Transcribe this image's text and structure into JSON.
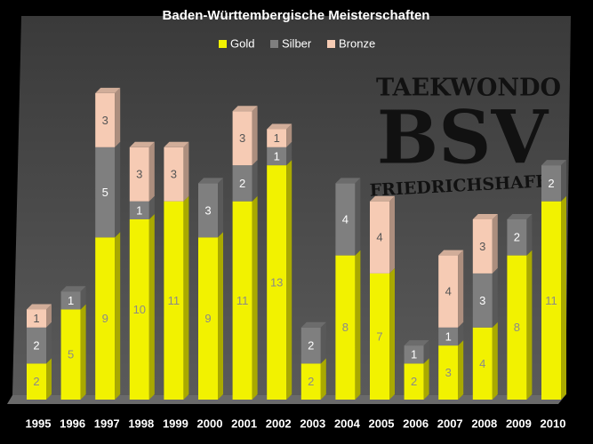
{
  "chart_data": {
    "type": "bar",
    "stacked": true,
    "title": "Baden-Württembergische Meisterschaften",
    "categories": [
      "1995",
      "1996",
      "1997",
      "1998",
      "1999",
      "2000",
      "2001",
      "2002",
      "2003",
      "2004",
      "2005",
      "2006",
      "2007",
      "2008",
      "2009",
      "2010"
    ],
    "series": [
      {
        "name": "Gold",
        "color": "#f2f200",
        "label_color": "#8a8a8a",
        "values": [
          2,
          5,
          9,
          10,
          11,
          9,
          11,
          13,
          2,
          8,
          7,
          2,
          3,
          4,
          8,
          11
        ]
      },
      {
        "name": "Silber",
        "color": "#7f7f7f",
        "label_color": "#ffffff",
        "values": [
          2,
          1,
          5,
          1,
          null,
          3,
          2,
          1,
          2,
          4,
          null,
          1,
          1,
          3,
          2,
          2
        ]
      },
      {
        "name": "Bronze",
        "color": "#f6cbb4",
        "label_color": "#555555",
        "values": [
          1,
          null,
          3,
          3,
          3,
          null,
          3,
          1,
          null,
          null,
          4,
          null,
          4,
          3,
          null,
          null
        ]
      }
    ],
    "annotations": [
      "TAEKWONDO",
      "BSV",
      "FRIEDRICHSHAFEN"
    ]
  }
}
